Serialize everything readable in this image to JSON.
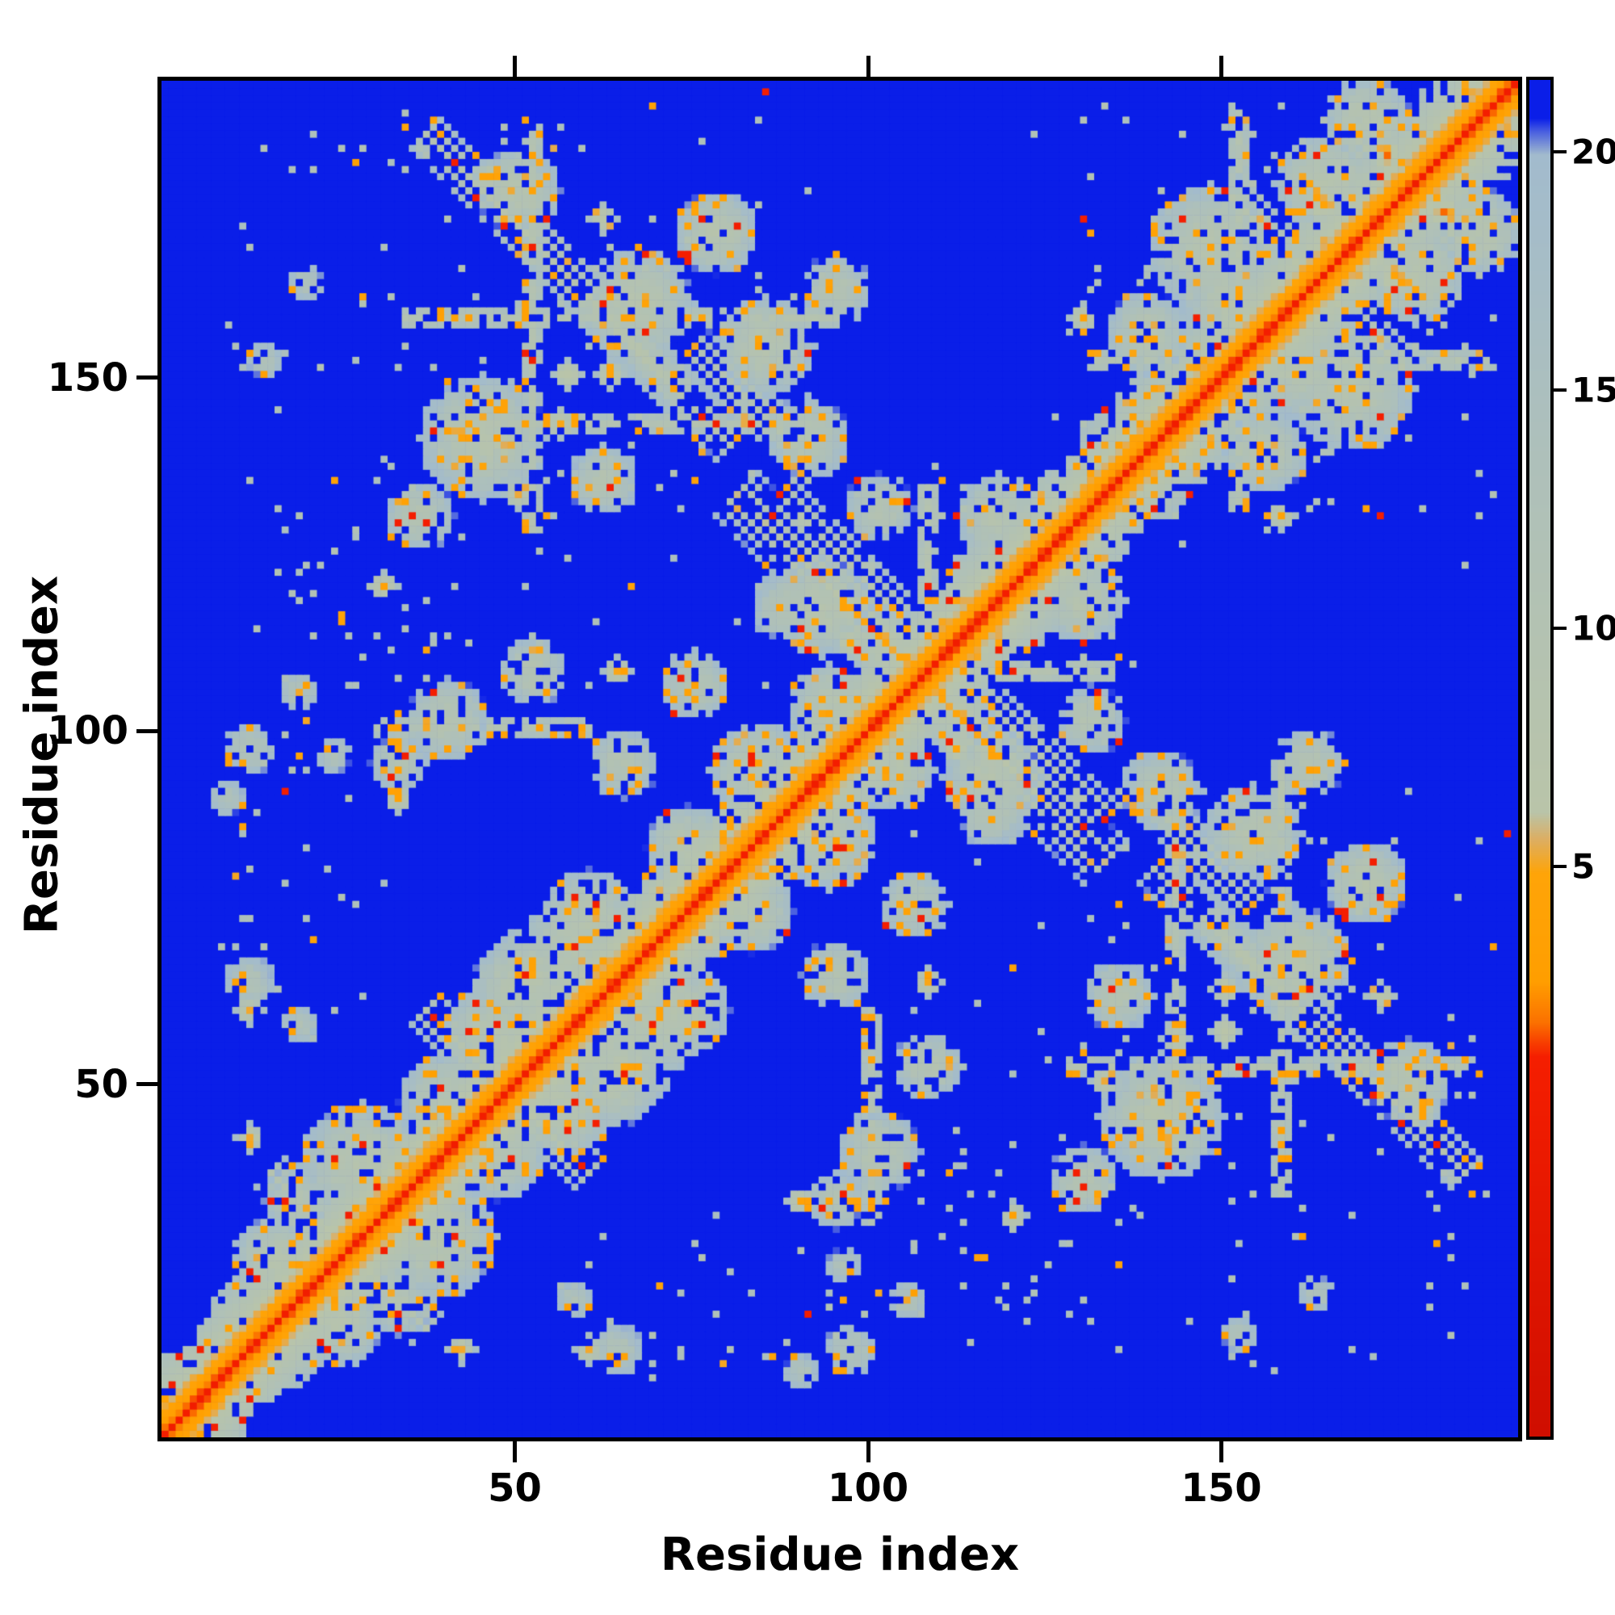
{
  "figure": {
    "background": "#ffffff",
    "frame_color": "#000000"
  },
  "chart_data": {
    "type": "heatmap",
    "title": "",
    "xlabel": "Residue index",
    "ylabel": "Residue index",
    "description": "Symmetric residue-residue distance/contact map of a ~190 residue protein. Red diagonal (near-zero distance) with orange then pale gray-green halo; off-diagonal pale clusters with orange contact speckles form an X pattern around residue ~107 and block clusters near (30-95,125-190), (115-190,25-95), (130-190,130-190) and (15-55,15-55); background saturated blue = far / no contact.",
    "n": 192,
    "x_range": [
      1,
      192
    ],
    "y_range": [
      1,
      192
    ],
    "x_ticks": [
      50,
      100,
      150
    ],
    "y_ticks": [
      50,
      100,
      150
    ],
    "grid": false,
    "vmin": -7,
    "vmax": 21.5,
    "cap": 21.5,
    "seed": 12,
    "colorbar": {
      "position": "right",
      "ticks": [
        5,
        10,
        15,
        20
      ]
    },
    "colormap": [
      [
        0.0,
        "#cf0e00"
      ],
      [
        0.28,
        "#f51e00"
      ],
      [
        0.305,
        "#fb7100"
      ],
      [
        0.335,
        "#ff9e00"
      ],
      [
        0.415,
        "#ffa408"
      ],
      [
        0.44,
        "#ddae62"
      ],
      [
        0.46,
        "#b9c4a9"
      ],
      [
        0.72,
        "#aec0ba"
      ],
      [
        0.945,
        "#a2bbcd"
      ],
      [
        0.962,
        "#4a60e0"
      ],
      [
        0.972,
        "#0a1ee8"
      ],
      [
        1.0,
        "#0a1ee8"
      ]
    ],
    "band": {
      "slope": 1.3,
      "hw_min": 8,
      "hw_var": 4
    },
    "features": {
      "blob_spread": 11,
      "anti_spread": 4.5,
      "blobs": [
        [
          28,
          38,
          9,
          9
        ],
        [
          16,
          24,
          7,
          9
        ],
        [
          40,
          47,
          7,
          9
        ],
        [
          33,
          19,
          5,
          10
        ],
        [
          47,
          56,
          8,
          9
        ],
        [
          58,
          70,
          7,
          9
        ],
        [
          50,
          63,
          7,
          9
        ],
        [
          66,
          56,
          6,
          10
        ],
        [
          60,
          73,
          7,
          9
        ],
        [
          52,
          64,
          8,
          9
        ],
        [
          74,
          83,
          6,
          9
        ],
        [
          84,
          94,
          7,
          9
        ],
        [
          94,
          103,
          6,
          9
        ],
        [
          40,
          101,
          6,
          10
        ],
        [
          52,
          108,
          5,
          10
        ],
        [
          33,
          95,
          4,
          10
        ],
        [
          75,
          106,
          5,
          10
        ],
        [
          65,
          95,
          5,
          10
        ],
        [
          117,
          93,
          7,
          9
        ],
        [
          130,
          118,
          6,
          9
        ],
        [
          101,
          131,
          5,
          10
        ],
        [
          88,
          117,
          5,
          10
        ],
        [
          112,
          102,
          5,
          8
        ],
        [
          45,
          141,
          9,
          9
        ],
        [
          67,
          160,
          8,
          9
        ],
        [
          85,
          154,
          7,
          9
        ],
        [
          50,
          176,
          6,
          9
        ],
        [
          91,
          141,
          6,
          10
        ],
        [
          36,
          130,
          5,
          10
        ],
        [
          62,
          135,
          5,
          10
        ],
        [
          78,
          170,
          6,
          9
        ],
        [
          95,
          162,
          5,
          10
        ],
        [
          148,
          168,
          9,
          9
        ],
        [
          160,
          151,
          7,
          9
        ],
        [
          139,
          156,
          6,
          10
        ],
        [
          170,
          186,
          6,
          9
        ],
        [
          177,
          164,
          7,
          9
        ],
        [
          155,
          139,
          5,
          10
        ],
        [
          185,
          172,
          5,
          9
        ],
        [
          166,
          178,
          5,
          9
        ],
        [
          12,
          64,
          4,
          12
        ],
        [
          19,
          58,
          3,
          12
        ],
        [
          12,
          97,
          4,
          12
        ],
        [
          19,
          105,
          3,
          12
        ],
        [
          9,
          90,
          3,
          13
        ],
        [
          24,
          96,
          3,
          13
        ],
        [
          14,
          152,
          3,
          13
        ],
        [
          20,
          163,
          3,
          13
        ],
        [
          56,
          143,
          2,
          5
        ],
        [
          48,
          140,
          2,
          4.5
        ],
        [
          85,
          92,
          2,
          5
        ],
        [
          80,
          87,
          2,
          4.5
        ],
        [
          108,
          64,
          2,
          5
        ],
        [
          63,
          150,
          2,
          5
        ],
        [
          164,
          174,
          3,
          5
        ],
        [
          158,
          130,
          2,
          5
        ],
        [
          133,
          50,
          2,
          5
        ],
        [
          120,
          31,
          2,
          5
        ],
        [
          90,
          33,
          2,
          5.5
        ],
        [
          42,
          12,
          2,
          5.5
        ],
        [
          12,
          60,
          2,
          6
        ],
        [
          97,
          117,
          2,
          5
        ],
        [
          112,
          97,
          2,
          5
        ],
        [
          150,
          57,
          2,
          5
        ],
        [
          172,
          62,
          2,
          5.5
        ],
        [
          178,
          46,
          2,
          5.5
        ],
        [
          173,
          181,
          2,
          2.5
        ],
        [
          137,
          141,
          2,
          5
        ],
        [
          52,
          49,
          2,
          4
        ],
        [
          30,
          30,
          2,
          4
        ],
        [
          70,
          77,
          2,
          4.5
        ]
      ],
      "antis": [
        [
          107,
          107,
          26,
          3,
          5
        ],
        [
          96,
          124,
          9,
          2,
          7
        ],
        [
          55,
          166,
          18,
          2,
          7
        ],
        [
          70,
          150,
          10,
          2,
          8
        ],
        [
          83,
          146,
          8,
          2,
          8
        ],
        [
          163,
          163,
          13,
          2,
          7
        ],
        [
          176,
          176,
          8,
          2,
          7
        ],
        [
          45,
          52,
          8,
          2,
          7
        ],
        [
          22,
          30,
          7,
          2,
          7
        ]
      ],
      "vlines": [
        [
          52,
          128,
          186,
          1,
          10
        ],
        [
          108,
          110,
          134,
          1,
          9
        ],
        [
          152,
          131,
          188,
          1,
          10
        ]
      ],
      "hlines": [
        [
          34,
          95,
          158,
          1,
          10
        ],
        [
          40,
          90,
          143,
          1,
          10
        ],
        [
          30,
          60,
          100,
          1,
          10
        ]
      ],
      "speckle_rects": [
        [
          55,
          95,
          8,
          28,
          0.035,
          11
        ],
        [
          95,
          140,
          12,
          34,
          0.035,
          11
        ],
        [
          140,
          186,
          10,
          28,
          0.02,
          11
        ],
        [
          100,
          130,
          30,
          45,
          0.02,
          11
        ],
        [
          28,
          72,
          112,
          140,
          0.03,
          11
        ],
        [
          130,
          190,
          128,
          190,
          0.02,
          11
        ],
        [
          30,
          95,
          128,
          188,
          0.025,
          11
        ],
        [
          98,
          135,
          80,
          125,
          0.02,
          11
        ],
        [
          150,
          185,
          8,
          22,
          0.015,
          11
        ]
      ]
    },
    "noise": {
      "orange_p": 0.09,
      "red_p": 0.012,
      "hole_p": 0.12,
      "sparse_p": 0.0012
    }
  }
}
